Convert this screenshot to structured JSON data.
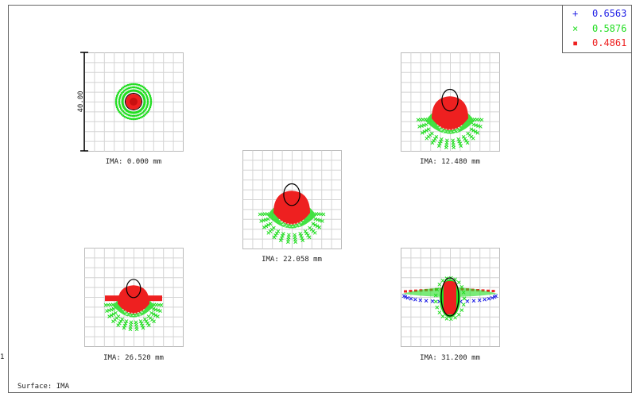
{
  "surface_label": "Surface: IMA",
  "scale_label": "40.00",
  "legend": [
    {
      "symbol": "+",
      "label": "0.6563",
      "color": "#2323e6"
    },
    {
      "symbol": "×",
      "label": "0.5876",
      "color": "#22dd22"
    },
    {
      "symbol": "▪",
      "label": "0.4861",
      "color": "#ee2020"
    }
  ],
  "chart_data": {
    "type": "scatter",
    "title": "",
    "xlabel": "",
    "ylabel": "",
    "plots": [
      {
        "label": "IMA: 0.000 mm"
      },
      {
        "label": "IMA: 12.480 mm"
      },
      {
        "label": "IMA: 22.058 mm"
      },
      {
        "label": "IMA: 26.520 mm"
      },
      {
        "label": "IMA: 31.200 mm"
      }
    ],
    "grid": true,
    "legend_position": "top-right"
  }
}
